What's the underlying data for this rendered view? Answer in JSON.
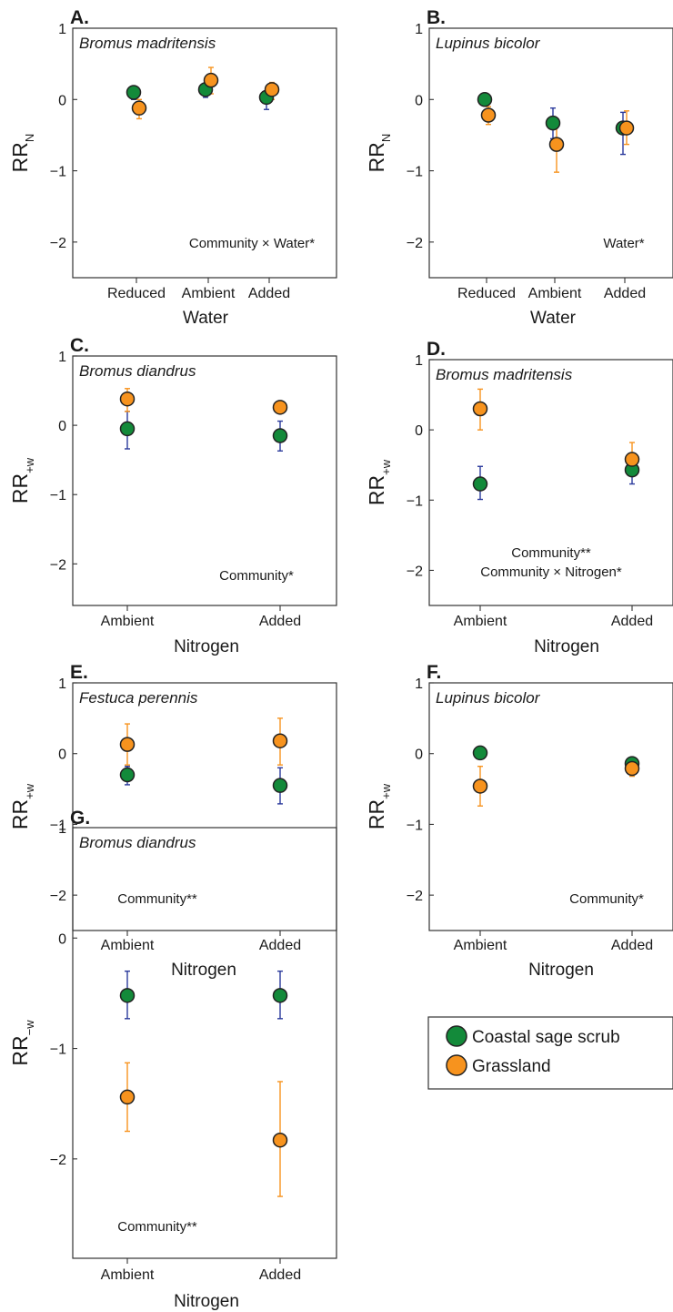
{
  "colors": {
    "coastal_sage_scrub": "#138a3a",
    "grassland": "#f7931e",
    "coastal_sage_scrub_error_bar": "#2b3a9c",
    "grassland_error_bar": "#f7931e"
  },
  "legend": {
    "items": [
      {
        "label": "Coastal sage scrub",
        "color": "#138a3a"
      },
      {
        "label": "Grassland",
        "color": "#f7931e"
      }
    ]
  },
  "chart_data": [
    {
      "panel": "A.",
      "type": "scatter",
      "title": "Bromus madritensis",
      "xlabel": "Water",
      "ylabel": "RR",
      "ylabel_sub": "N",
      "categories": [
        "Reduced",
        "Ambient",
        "Added"
      ],
      "ylim": [
        -2.5,
        1
      ],
      "yticks": [
        1,
        0,
        -1,
        -2
      ],
      "annotations": [
        "Community × Water*"
      ],
      "series": [
        {
          "name": "Coastal sage scrub",
          "values": [
            0.1,
            0.14,
            0.03
          ],
          "lo": [
            0.0,
            0.03,
            -0.14
          ],
          "hi": [
            0.18,
            0.22,
            0.1
          ]
        },
        {
          "name": "Grassland",
          "values": [
            -0.12,
            0.27,
            0.14
          ],
          "lo": [
            -0.27,
            0.08,
            0.0
          ],
          "hi": [
            0.0,
            0.45,
            0.24
          ]
        }
      ]
    },
    {
      "panel": "B.",
      "type": "scatter",
      "title": "Lupinus bicolor",
      "xlabel": "Water",
      "ylabel": "RR",
      "ylabel_sub": "N",
      "categories": [
        "Reduced",
        "Ambient",
        "Added"
      ],
      "ylim": [
        -2.5,
        1
      ],
      "yticks": [
        1,
        0,
        -1,
        -2
      ],
      "annotations": [
        "Water*"
      ],
      "series": [
        {
          "name": "Coastal sage scrub",
          "values": [
            0.0,
            -0.33,
            -0.4
          ],
          "lo": [
            -0.05,
            -0.55,
            -0.77
          ],
          "hi": [
            0.03,
            -0.12,
            -0.18
          ]
        },
        {
          "name": "Grassland",
          "values": [
            -0.22,
            -0.63,
            -0.4
          ],
          "lo": [
            -0.35,
            -1.02,
            -0.63
          ],
          "hi": [
            -0.1,
            -0.3,
            -0.16
          ]
        }
      ]
    },
    {
      "panel": "C.",
      "type": "scatter",
      "title": "Bromus diandrus",
      "xlabel": "Nitrogen",
      "ylabel": "RR",
      "ylabel_sub": "+w",
      "categories": [
        "Ambient",
        "Added"
      ],
      "ylim": [
        -2.6,
        1
      ],
      "yticks": [
        1,
        0,
        -1,
        -2
      ],
      "annotations": [
        "Community*"
      ],
      "series": [
        {
          "name": "Coastal sage scrub",
          "values": [
            -0.05,
            -0.15
          ],
          "lo": [
            -0.34,
            -0.37
          ],
          "hi": [
            0.2,
            0.06
          ]
        },
        {
          "name": "Grassland",
          "values": [
            0.38,
            0.26
          ],
          "lo": [
            0.2,
            0.2
          ],
          "hi": [
            0.53,
            0.32
          ]
        }
      ]
    },
    {
      "panel": "D.",
      "type": "scatter",
      "title": "Bromus madritensis",
      "xlabel": "Nitrogen",
      "ylabel": "RR",
      "ylabel_sub": "+w",
      "categories": [
        "Ambient",
        "Added"
      ],
      "ylim": [
        -2.5,
        1
      ],
      "yticks": [
        1,
        0,
        -1,
        -2
      ],
      "annotations": [
        "Community**",
        "Community × Nitrogen*"
      ],
      "series": [
        {
          "name": "Coastal sage scrub",
          "values": [
            -0.77,
            -0.57
          ],
          "lo": [
            -0.99,
            -0.77
          ],
          "hi": [
            -0.52,
            -0.4
          ]
        },
        {
          "name": "Grassland",
          "values": [
            0.3,
            -0.42
          ],
          "lo": [
            0.0,
            -0.62
          ],
          "hi": [
            0.58,
            -0.18
          ]
        }
      ]
    },
    {
      "panel": "E.",
      "type": "scatter",
      "title": "Festuca perennis",
      "xlabel": "Nitrogen",
      "ylabel": "RR",
      "ylabel_sub": "+w",
      "categories": [
        "Ambient",
        "Added"
      ],
      "ylim": [
        -2.5,
        1
      ],
      "yticks": [
        1,
        0,
        -1,
        -2
      ],
      "annotations": [
        "Community**"
      ],
      "series": [
        {
          "name": "Coastal sage scrub",
          "values": [
            -0.3,
            -0.45
          ],
          "lo": [
            -0.44,
            -0.71
          ],
          "hi": [
            -0.18,
            -0.2
          ]
        },
        {
          "name": "Grassland",
          "values": [
            0.13,
            0.18
          ],
          "lo": [
            -0.16,
            -0.16
          ],
          "hi": [
            0.42,
            0.5
          ]
        }
      ]
    },
    {
      "panel": "F.",
      "type": "scatter",
      "title": "Lupinus bicolor",
      "xlabel": "Nitrogen",
      "ylabel": "RR",
      "ylabel_sub": "+w",
      "categories": [
        "Ambient",
        "Added"
      ],
      "ylim": [
        -2.5,
        1
      ],
      "yticks": [
        1,
        0,
        -1,
        -2
      ],
      "annotations": [
        "Community*"
      ],
      "series": [
        {
          "name": "Coastal sage scrub",
          "values": [
            0.01,
            -0.14
          ],
          "lo": [
            -0.03,
            -0.2
          ],
          "hi": [
            0.04,
            -0.08
          ]
        },
        {
          "name": "Grassland",
          "values": [
            -0.46,
            -0.21
          ],
          "lo": [
            -0.74,
            -0.32
          ],
          "hi": [
            -0.18,
            -0.12
          ]
        }
      ]
    },
    {
      "panel": "G.",
      "type": "scatter",
      "title": "Bromus diandrus",
      "xlabel": "Nitrogen",
      "ylabel": "RR",
      "ylabel_sub": "−w",
      "categories": [
        "Ambient",
        "Added"
      ],
      "ylim": [
        -2.9,
        1
      ],
      "yticks": [
        1,
        0,
        -1,
        -2
      ],
      "annotations": [
        "Community**"
      ],
      "series": [
        {
          "name": "Coastal sage scrub",
          "values": [
            -0.52,
            -0.52
          ],
          "lo": [
            -0.73,
            -0.73
          ],
          "hi": [
            -0.3,
            -0.3
          ]
        },
        {
          "name": "Grassland",
          "values": [
            -1.44,
            -1.83
          ],
          "lo": [
            -1.75,
            -2.34
          ],
          "hi": [
            -1.13,
            -1.3
          ]
        }
      ]
    }
  ]
}
